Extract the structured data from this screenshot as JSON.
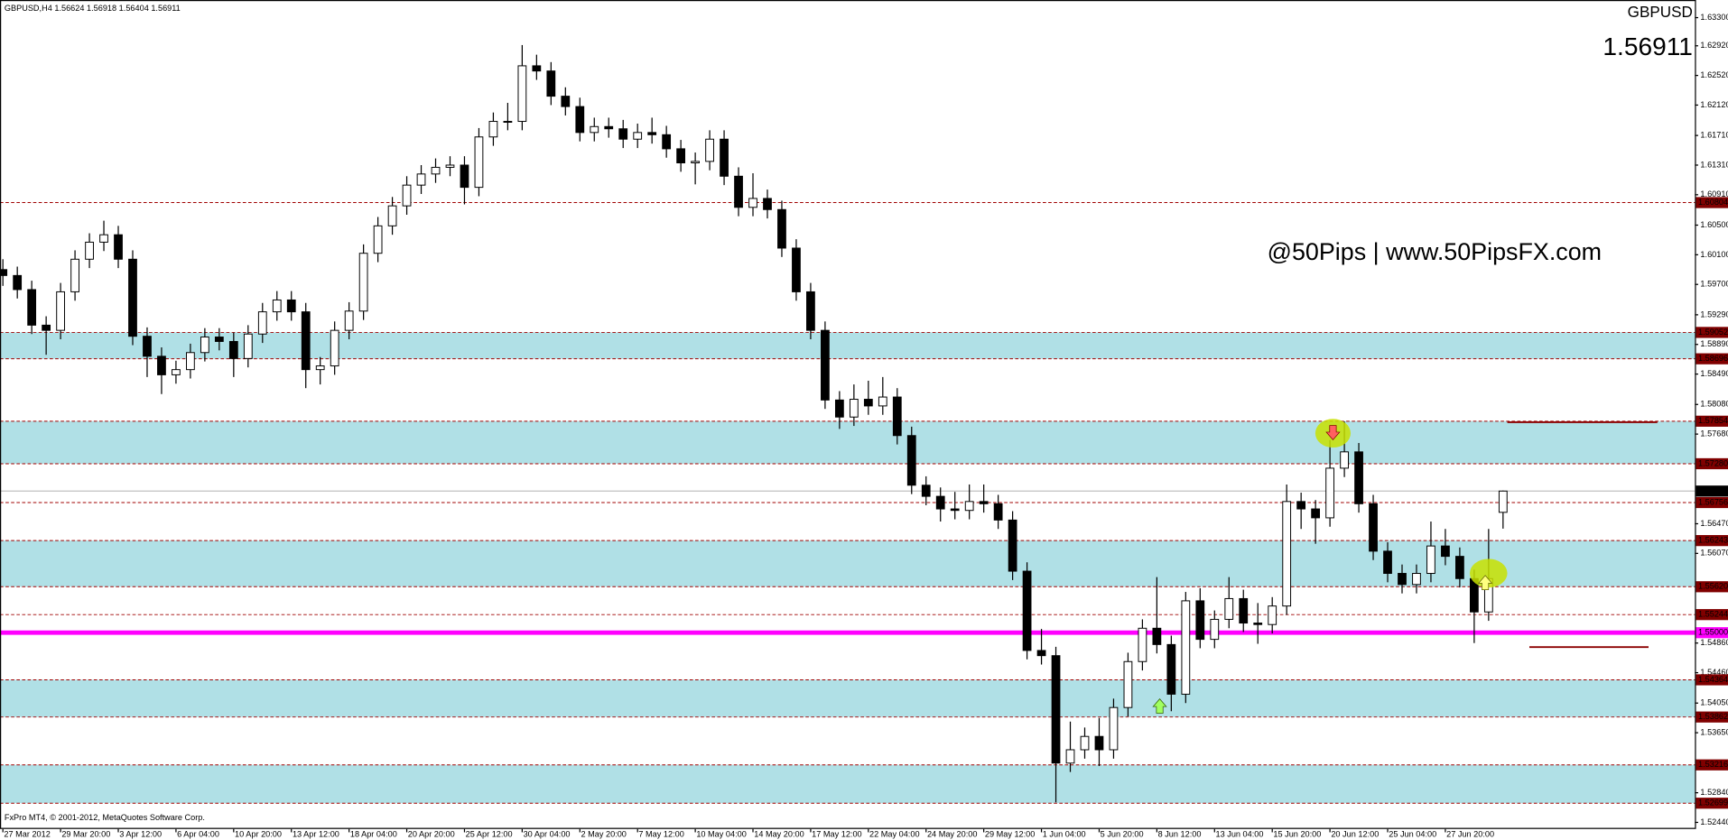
{
  "chart_data": {
    "type": "candlestick",
    "title": "GBPUSD",
    "symbol": "GBPUSD,H4",
    "watermark": "@50Pips | www.50PipsFX.com",
    "footer": "FxPro MT4, © 2001-2012, MetaQuotes Software Corp.",
    "open": [
      1.599,
      1.5982,
      1.5963,
      1.5915,
      1.5908,
      1.596,
      1.6004,
      1.6027,
      1.6037,
      1.6004,
      1.59,
      1.5873,
      1.5848,
      1.5855,
      1.5878,
      1.5899,
      1.5893,
      1.587,
      1.5903,
      1.5933,
      1.5949,
      1.5933,
      1.5855,
      1.586,
      1.5908,
      1.5934,
      1.6012,
      1.6049,
      1.6076,
      1.6104,
      1.6119,
      1.6128,
      1.6131,
      1.6101,
      1.6169,
      1.619,
      1.619,
      1.6265,
      1.6258,
      1.6224,
      1.621,
      1.6175,
      1.6183,
      1.618,
      1.6166,
      1.6175,
      1.6172,
      1.6153,
      1.6134,
      1.6136,
      1.6166,
      1.6116,
      1.6074,
      1.6086,
      1.6071,
      1.6019,
      1.596,
      1.5908,
      1.5814,
      1.5791,
      1.5815,
      1.5806,
      1.5818,
      1.5766,
      1.5699,
      1.5684,
      1.5667,
      1.5665,
      1.5677,
      1.5674,
      1.5652,
      1.5583,
      1.5476,
      1.5469,
      1.5324,
      1.5342,
      1.536,
      1.5342,
      1.5399,
      1.5461,
      1.5506,
      1.5484,
      1.5417,
      1.5543,
      1.5491,
      1.5518,
      1.5546,
      1.5513,
      1.5511,
      1.5536,
      1.5677,
      1.5667,
      1.5655,
      1.5722,
      1.5744,
      1.5674,
      1.561,
      1.558,
      1.5565,
      1.558,
      1.5617,
      1.5603,
      1.5573,
      1.5528,
      1.56624
    ],
    "high": [
      1.6004,
      1.5994,
      1.5975,
      1.5927,
      1.5972,
      1.6016,
      1.6039,
      1.6056,
      1.6049,
      1.6016,
      1.5912,
      1.5885,
      1.5867,
      1.589,
      1.5911,
      1.5911,
      1.5905,
      1.5915,
      1.5945,
      1.5961,
      1.5961,
      1.5945,
      1.5872,
      1.592,
      1.5946,
      1.6024,
      1.6061,
      1.6088,
      1.6116,
      1.6131,
      1.614,
      1.6143,
      1.6143,
      1.6181,
      1.6202,
      1.6215,
      1.6293,
      1.628,
      1.627,
      1.6236,
      1.6222,
      1.6195,
      1.6195,
      1.6192,
      1.6187,
      1.6195,
      1.6184,
      1.6165,
      1.6148,
      1.6178,
      1.6178,
      1.6128,
      1.612,
      1.6098,
      1.6083,
      1.6031,
      1.5972,
      1.592,
      1.5826,
      1.5835,
      1.584,
      1.5845,
      1.583,
      1.5778,
      1.5711,
      1.5696,
      1.569,
      1.57,
      1.57,
      1.5686,
      1.5664,
      1.5595,
      1.5505,
      1.5481,
      1.538,
      1.5372,
      1.5385,
      1.5411,
      1.5473,
      1.5518,
      1.5575,
      1.5496,
      1.5555,
      1.556,
      1.553,
      1.5575,
      1.5558,
      1.554,
      1.5548,
      1.57,
      1.5689,
      1.5679,
      1.576,
      1.5785,
      1.5756,
      1.5686,
      1.5622,
      1.5592,
      1.5592,
      1.565,
      1.564,
      1.5615,
      1.5585,
      1.564,
      1.56918
    ],
    "low": [
      1.5968,
      1.5951,
      1.5903,
      1.5875,
      1.5896,
      1.5948,
      1.5992,
      1.6015,
      1.5992,
      1.5888,
      1.5845,
      1.5822,
      1.5836,
      1.5843,
      1.5866,
      1.5881,
      1.5845,
      1.5858,
      1.5891,
      1.5921,
      1.5921,
      1.583,
      1.5835,
      1.5848,
      1.5896,
      1.5922,
      1.6,
      1.6037,
      1.6064,
      1.6092,
      1.6107,
      1.6116,
      1.6078,
      1.6089,
      1.6157,
      1.6178,
      1.6178,
      1.6246,
      1.6212,
      1.6198,
      1.6163,
      1.6163,
      1.6168,
      1.6154,
      1.6154,
      1.616,
      1.6141,
      1.6122,
      1.6105,
      1.6124,
      1.6104,
      1.6062,
      1.6062,
      1.6059,
      1.6007,
      1.5948,
      1.5896,
      1.5802,
      1.5775,
      1.5779,
      1.5794,
      1.5794,
      1.5754,
      1.5687,
      1.5672,
      1.565,
      1.5653,
      1.5653,
      1.5662,
      1.564,
      1.5571,
      1.5464,
      1.5457,
      1.5271,
      1.5312,
      1.533,
      1.532,
      1.533,
      1.5387,
      1.5449,
      1.5472,
      1.5394,
      1.5405,
      1.5479,
      1.5479,
      1.5506,
      1.5501,
      1.5485,
      1.5499,
      1.5524,
      1.564,
      1.562,
      1.5643,
      1.571,
      1.5662,
      1.5598,
      1.5568,
      1.5553,
      1.5553,
      1.5568,
      1.5591,
      1.5561,
      1.5486,
      1.5516,
      1.56404
    ],
    "close": [
      1.5982,
      1.5963,
      1.5915,
      1.5908,
      1.596,
      1.6004,
      1.6027,
      1.6037,
      1.6004,
      1.59,
      1.5873,
      1.5848,
      1.5855,
      1.5878,
      1.5899,
      1.5893,
      1.587,
      1.5903,
      1.5933,
      1.5949,
      1.5933,
      1.5855,
      1.586,
      1.5908,
      1.5934,
      1.6012,
      1.6049,
      1.6076,
      1.6104,
      1.6119,
      1.6128,
      1.6131,
      1.6101,
      1.6169,
      1.619,
      1.619,
      1.6265,
      1.6258,
      1.6224,
      1.621,
      1.6175,
      1.6183,
      1.618,
      1.6166,
      1.6175,
      1.6172,
      1.6153,
      1.6134,
      1.6136,
      1.6166,
      1.6116,
      1.6074,
      1.6086,
      1.6071,
      1.6019,
      1.596,
      1.5908,
      1.5814,
      1.5791,
      1.5815,
      1.5806,
      1.5818,
      1.5766,
      1.5699,
      1.5684,
      1.5667,
      1.5665,
      1.5677,
      1.5674,
      1.5652,
      1.5583,
      1.5476,
      1.5469,
      1.5324,
      1.5342,
      1.536,
      1.5342,
      1.5399,
      1.5461,
      1.5506,
      1.5484,
      1.5417,
      1.5543,
      1.5491,
      1.5518,
      1.5546,
      1.5513,
      1.5511,
      1.5536,
      1.5677,
      1.5667,
      1.5655,
      1.5722,
      1.5744,
      1.5674,
      1.561,
      1.558,
      1.5565,
      1.558,
      1.5617,
      1.5603,
      1.5573,
      1.5528,
      1.5573,
      1.56911
    ],
    "xlim": [
      -0.2,
      117.3
    ],
    "xticks": [
      {
        "value": 0,
        "label": "27 Mar 2012"
      },
      {
        "value": 4,
        "label": "29 Mar 20:00"
      },
      {
        "value": 8,
        "label": "3 Apr 12:00"
      },
      {
        "value": 12,
        "label": "6 Apr 04:00"
      },
      {
        "value": 16,
        "label": "10 Apr 20:00"
      },
      {
        "value": 20,
        "label": "13 Apr 12:00"
      },
      {
        "value": 24,
        "label": "18 Apr 04:00"
      },
      {
        "value": 28,
        "label": "20 Apr 20:00"
      },
      {
        "value": 32,
        "label": "25 Apr 12:00"
      },
      {
        "value": 36,
        "label": "30 Apr 04:00"
      },
      {
        "value": 40,
        "label": "2 May 20:00"
      },
      {
        "value": 44,
        "label": "7 May 12:00"
      },
      {
        "value": 48,
        "label": "10 May 04:00"
      },
      {
        "value": 52,
        "label": "14 May 20:00"
      },
      {
        "value": 56,
        "label": "17 May 12:00"
      },
      {
        "value": 60,
        "label": "22 May 04:00"
      },
      {
        "value": 64,
        "label": "24 May 20:00"
      },
      {
        "value": 68,
        "label": "29 May 12:00"
      },
      {
        "value": 72,
        "label": "1 Jun 04:00"
      },
      {
        "value": 76,
        "label": "5 Jun 20:00"
      },
      {
        "value": 80,
        "label": "8 Jun 12:00"
      },
      {
        "value": 84,
        "label": "13 Jun 04:00"
      },
      {
        "value": 88,
        "label": "15 Jun 20:00"
      },
      {
        "value": 92,
        "label": "20 Jun 12:00"
      },
      {
        "value": 96,
        "label": "25 Jun 04:00"
      },
      {
        "value": 100,
        "label": "27 Jun 20:00"
      }
    ],
    "ylim": [
      1.52351,
      1.63538
    ],
    "yticks": [
      {
        "value": 1.633,
        "label": "1.63300"
      },
      {
        "value": 1.6292,
        "label": "1.62920"
      },
      {
        "value": 1.6252,
        "label": "1.62520"
      },
      {
        "value": 1.6212,
        "label": "1.62120"
      },
      {
        "value": 1.6171,
        "label": "1.61710"
      },
      {
        "value": 1.6131,
        "label": "1.61310"
      },
      {
        "value": 1.6091,
        "label": "1.60910"
      },
      {
        "value": 1.605,
        "label": "1.60500"
      },
      {
        "value": 1.601,
        "label": "1.60100"
      },
      {
        "value": 1.597,
        "label": "1.59700"
      },
      {
        "value": 1.5929,
        "label": "1.59290"
      },
      {
        "value": 1.5889,
        "label": "1.58890"
      },
      {
        "value": 1.5849,
        "label": "1.58490"
      },
      {
        "value": 1.5808,
        "label": "1.58080"
      },
      {
        "value": 1.5768,
        "label": "1.57680"
      },
      {
        "value": 1.5647,
        "label": "1.56470"
      },
      {
        "value": 1.5607,
        "label": "1.56070"
      },
      {
        "value": 1.5486,
        "label": "1.54860"
      },
      {
        "value": 1.5446,
        "label": "1.54460"
      },
      {
        "value": 1.5405,
        "label": "1.54050"
      },
      {
        "value": 1.5365,
        "label": "1.53650"
      },
      {
        "value": 1.5284,
        "label": "1.52840"
      },
      {
        "value": 1.5244,
        "label": "1.52440"
      }
    ],
    "levels": [
      1.60804,
      1.59052,
      1.58696,
      1.57854,
      {
        "value": 1.5728,
        "label": "1.57280"
      },
      1.56756,
      1.56243,
      {
        "value": 1.5562,
        "label": "1.55620"
      },
      1.55244,
      1.54364,
      1.53862,
      1.53216,
      1.52699
    ],
    "key_level": {
      "value": 1.55,
      "label": "1.55000"
    },
    "zones": [
      [
        1.58696,
        1.59052
      ],
      [
        1.5728,
        1.57854
      ],
      [
        1.5562,
        1.56243
      ],
      [
        1.53862,
        1.54364
      ],
      [
        1.52699,
        1.53216
      ]
    ],
    "colors": {
      "bull": "#ffffff",
      "bear": "#000000",
      "level": "#a00000",
      "level_label": "#800000",
      "key_level": "#ff00ff",
      "zone": "#b0e0e6",
      "price_line": "#c0c0c0",
      "title": "#ff0000",
      "watermark": "#8b1a1a"
    }
  }
}
